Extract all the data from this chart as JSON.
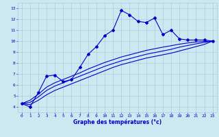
{
  "hours": [
    0,
    1,
    2,
    3,
    4,
    5,
    6,
    7,
    8,
    9,
    10,
    11,
    12,
    13,
    14,
    15,
    16,
    17,
    18,
    19,
    20,
    21,
    22,
    23
  ],
  "temp_actual": [
    4.3,
    4.0,
    5.3,
    6.8,
    6.9,
    6.3,
    6.5,
    7.6,
    8.8,
    9.5,
    10.5,
    11.0,
    12.8,
    12.4,
    11.8,
    11.7,
    12.1,
    10.6,
    11.0,
    10.2,
    10.1,
    10.1,
    10.1,
    10.0
  ],
  "temp_line1": [
    4.3,
    4.2,
    4.6,
    5.1,
    5.5,
    5.8,
    6.1,
    6.4,
    6.7,
    7.0,
    7.3,
    7.6,
    7.85,
    8.05,
    8.25,
    8.45,
    8.6,
    8.75,
    8.9,
    9.1,
    9.3,
    9.5,
    9.7,
    10.0
  ],
  "temp_line2": [
    4.3,
    4.4,
    4.9,
    5.5,
    5.9,
    6.2,
    6.5,
    6.8,
    7.1,
    7.4,
    7.7,
    7.95,
    8.2,
    8.4,
    8.6,
    8.8,
    8.95,
    9.1,
    9.25,
    9.45,
    9.6,
    9.75,
    9.88,
    10.0
  ],
  "temp_line3": [
    4.3,
    4.6,
    5.15,
    5.8,
    6.2,
    6.5,
    6.8,
    7.1,
    7.45,
    7.75,
    8.05,
    8.3,
    8.55,
    8.75,
    8.95,
    9.15,
    9.3,
    9.45,
    9.58,
    9.72,
    9.83,
    9.92,
    9.97,
    10.0
  ],
  "line_color": "#0000cc",
  "marker_color": "#0000cc",
  "bg_color": "#cce8f0",
  "grid_color": "#aaccdd",
  "xlabel": "Graphe des températures (°c)",
  "xlim": [
    -0.5,
    23.5
  ],
  "ylim": [
    3.5,
    13.5
  ],
  "yticks": [
    4,
    5,
    6,
    7,
    8,
    9,
    10,
    11,
    12,
    13
  ],
  "xticks": [
    0,
    1,
    2,
    3,
    4,
    5,
    6,
    7,
    8,
    9,
    10,
    11,
    12,
    13,
    14,
    15,
    16,
    17,
    18,
    19,
    20,
    21,
    22,
    23
  ]
}
